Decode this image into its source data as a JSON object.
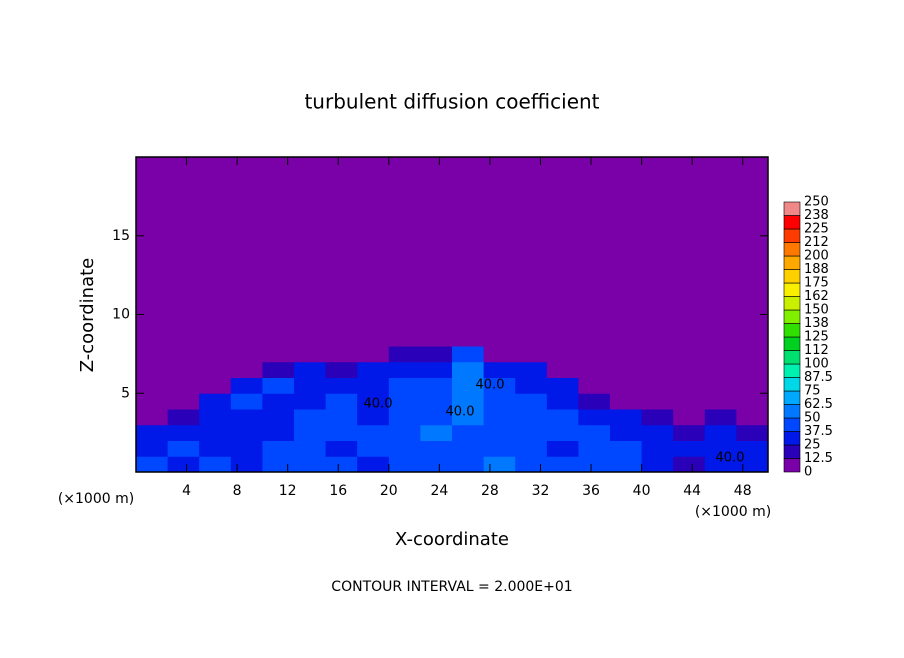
{
  "chart_data": {
    "type": "contour",
    "title": "turbulent diffusion coefficient",
    "xlabel": "X-coordinate",
    "ylabel": "Z-coordinate",
    "x_unit": "(×1000 m)",
    "y_unit": "(×1000 m)",
    "footnote": "CONTOUR INTERVAL = 2.000E+01",
    "contour_labels": [
      "40.0",
      "40.0",
      "40.0",
      "40.0"
    ],
    "xlim": [
      0,
      50
    ],
    "ylim": [
      0,
      20
    ],
    "xticks": [
      4,
      8,
      12,
      16,
      20,
      24,
      28,
      32,
      36,
      40,
      44,
      48
    ],
    "yticks": [
      5,
      10,
      15
    ],
    "xbins": [
      0,
      2.5,
      5,
      7.5,
      10,
      12.5,
      15,
      17.5,
      20,
      22.5,
      25,
      27.5,
      30,
      32.5,
      35,
      37.5,
      40,
      42.5,
      45,
      47.5,
      50
    ],
    "zbins": [
      0,
      1,
      2,
      3,
      4,
      5,
      6,
      7,
      8,
      9
    ],
    "values": [
      [
        40,
        35,
        40,
        30,
        40,
        45,
        40,
        35,
        40,
        45,
        40,
        50,
        45,
        40,
        40,
        45,
        30,
        20,
        35,
        30
      ],
      [
        35,
        40,
        30,
        35,
        40,
        40,
        35,
        40,
        45,
        40,
        45,
        40,
        40,
        35,
        45,
        40,
        35,
        30,
        30,
        25
      ],
      [
        30,
        35,
        25,
        30,
        30,
        40,
        40,
        40,
        40,
        50,
        45,
        45,
        40,
        40,
        45,
        35,
        30,
        20,
        25,
        20
      ],
      [
        10,
        15,
        30,
        30,
        25,
        40,
        40,
        35,
        40,
        45,
        50,
        45,
        40,
        40,
        30,
        25,
        15,
        10,
        15,
        10
      ],
      [
        5,
        10,
        35,
        40,
        35,
        35,
        40,
        35,
        40,
        45,
        55,
        40,
        40,
        35,
        20,
        10,
        5,
        5,
        10,
        5
      ],
      [
        0,
        5,
        10,
        35,
        40,
        30,
        35,
        35,
        40,
        40,
        60,
        40,
        35,
        30,
        10,
        5,
        0,
        0,
        5,
        0
      ],
      [
        0,
        0,
        0,
        5,
        20,
        25,
        20,
        25,
        35,
        35,
        55,
        35,
        30,
        10,
        5,
        0,
        0,
        0,
        0,
        0
      ],
      [
        0,
        0,
        0,
        0,
        0,
        5,
        5,
        10,
        20,
        20,
        40,
        10,
        5,
        0,
        0,
        0,
        0,
        0,
        0,
        0
      ],
      [
        0,
        0,
        0,
        0,
        0,
        0,
        0,
        0,
        5,
        5,
        10,
        5,
        0,
        0,
        0,
        0,
        0,
        0,
        0,
        0
      ]
    ],
    "levels": [
      0,
      12.5,
      25,
      37.5,
      50,
      62.5,
      75,
      87.5,
      100,
      112,
      125,
      138,
      150,
      162,
      175,
      188,
      200,
      212,
      225,
      238,
      250
    ],
    "colors": [
      "#7a00a8",
      "#2a00b8",
      "#0018e8",
      "#0048ff",
      "#0078ff",
      "#00a8ff",
      "#00d8e8",
      "#00f0b0",
      "#00e070",
      "#00d020",
      "#30e000",
      "#80f000",
      "#c8f000",
      "#f8f000",
      "#ffd000",
      "#ffa800",
      "#ff7800",
      "#ff3c00",
      "#ff0000",
      "#f08888"
    ]
  }
}
